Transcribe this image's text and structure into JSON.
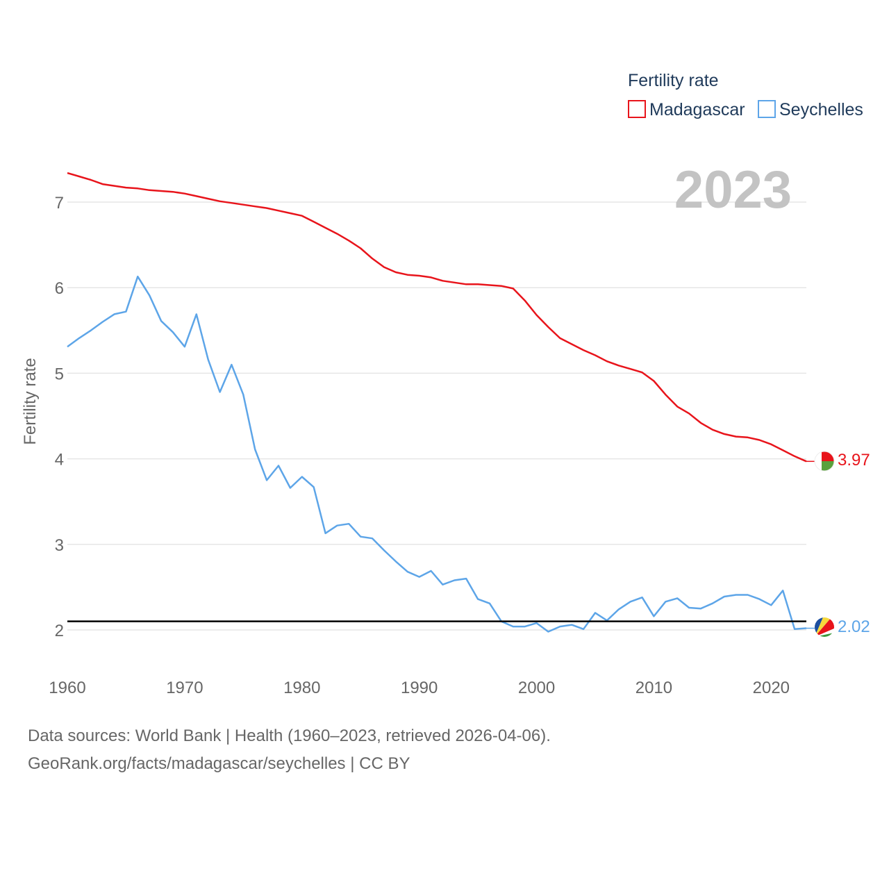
{
  "chart_data": {
    "type": "line",
    "title": "",
    "xlabel": "",
    "ylabel": "Fertility rate",
    "xlim": [
      1960,
      2023
    ],
    "ylim": [
      1.5,
      7.7
    ],
    "x_ticks": [
      1960,
      1970,
      1980,
      1990,
      2000,
      2010,
      2020
    ],
    "y_ticks": [
      2,
      3,
      4,
      5,
      6,
      7
    ],
    "legend_title": "Fertility rate",
    "legend_position": "top-right",
    "year_label": "2023",
    "reference_line": 2.1,
    "x": [
      1960,
      1961,
      1962,
      1963,
      1964,
      1965,
      1966,
      1967,
      1968,
      1969,
      1970,
      1971,
      1972,
      1973,
      1974,
      1975,
      1976,
      1977,
      1978,
      1979,
      1980,
      1981,
      1982,
      1983,
      1984,
      1985,
      1986,
      1987,
      1988,
      1989,
      1990,
      1991,
      1992,
      1993,
      1994,
      1995,
      1996,
      1997,
      1998,
      1999,
      2000,
      2001,
      2002,
      2003,
      2004,
      2005,
      2006,
      2007,
      2008,
      2009,
      2010,
      2011,
      2012,
      2013,
      2014,
      2015,
      2016,
      2017,
      2018,
      2019,
      2020,
      2021,
      2022,
      2023
    ],
    "series": [
      {
        "name": "Madagascar",
        "color": "#e8141b",
        "end_label": "3.97",
        "values": [
          7.34,
          7.3,
          7.26,
          7.21,
          7.19,
          7.17,
          7.16,
          7.14,
          7.13,
          7.12,
          7.1,
          7.07,
          7.04,
          7.01,
          6.99,
          6.97,
          6.95,
          6.93,
          6.9,
          6.87,
          6.84,
          6.77,
          6.7,
          6.63,
          6.55,
          6.46,
          6.34,
          6.24,
          6.18,
          6.15,
          6.14,
          6.12,
          6.08,
          6.06,
          6.04,
          6.04,
          6.03,
          6.02,
          5.99,
          5.85,
          5.68,
          5.54,
          5.41,
          5.34,
          5.27,
          5.21,
          5.14,
          5.09,
          5.05,
          5.01,
          4.91,
          4.75,
          4.61,
          4.53,
          4.42,
          4.34,
          4.29,
          4.26,
          4.25,
          4.22,
          4.17,
          4.1,
          4.03,
          3.97
        ]
      },
      {
        "name": "Seychelles",
        "color": "#5da5e8",
        "end_label": "2.02",
        "values": [
          5.31,
          5.41,
          5.5,
          5.6,
          5.69,
          5.72,
          6.13,
          5.91,
          5.61,
          5.48,
          5.31,
          5.69,
          5.16,
          4.78,
          5.1,
          4.75,
          4.11,
          3.75,
          3.92,
          3.66,
          3.79,
          3.67,
          3.13,
          3.22,
          3.24,
          3.09,
          3.07,
          2.93,
          2.8,
          2.68,
          2.62,
          2.69,
          2.53,
          2.58,
          2.6,
          2.36,
          2.31,
          2.1,
          2.04,
          2.04,
          2.08,
          1.98,
          2.04,
          2.06,
          2.01,
          2.2,
          2.11,
          2.24,
          2.33,
          2.38,
          2.16,
          2.33,
          2.37,
          2.26,
          2.25,
          2.31,
          2.39,
          2.41,
          2.41,
          2.36,
          2.29,
          2.46,
          2.01,
          2.02
        ]
      }
    ]
  },
  "footer": {
    "line1": "Data sources: World Bank | Health (1960–2023, retrieved 2026-04-06).",
    "line2": "GeoRank.org/facts/madagascar/seychelles | CC BY"
  }
}
